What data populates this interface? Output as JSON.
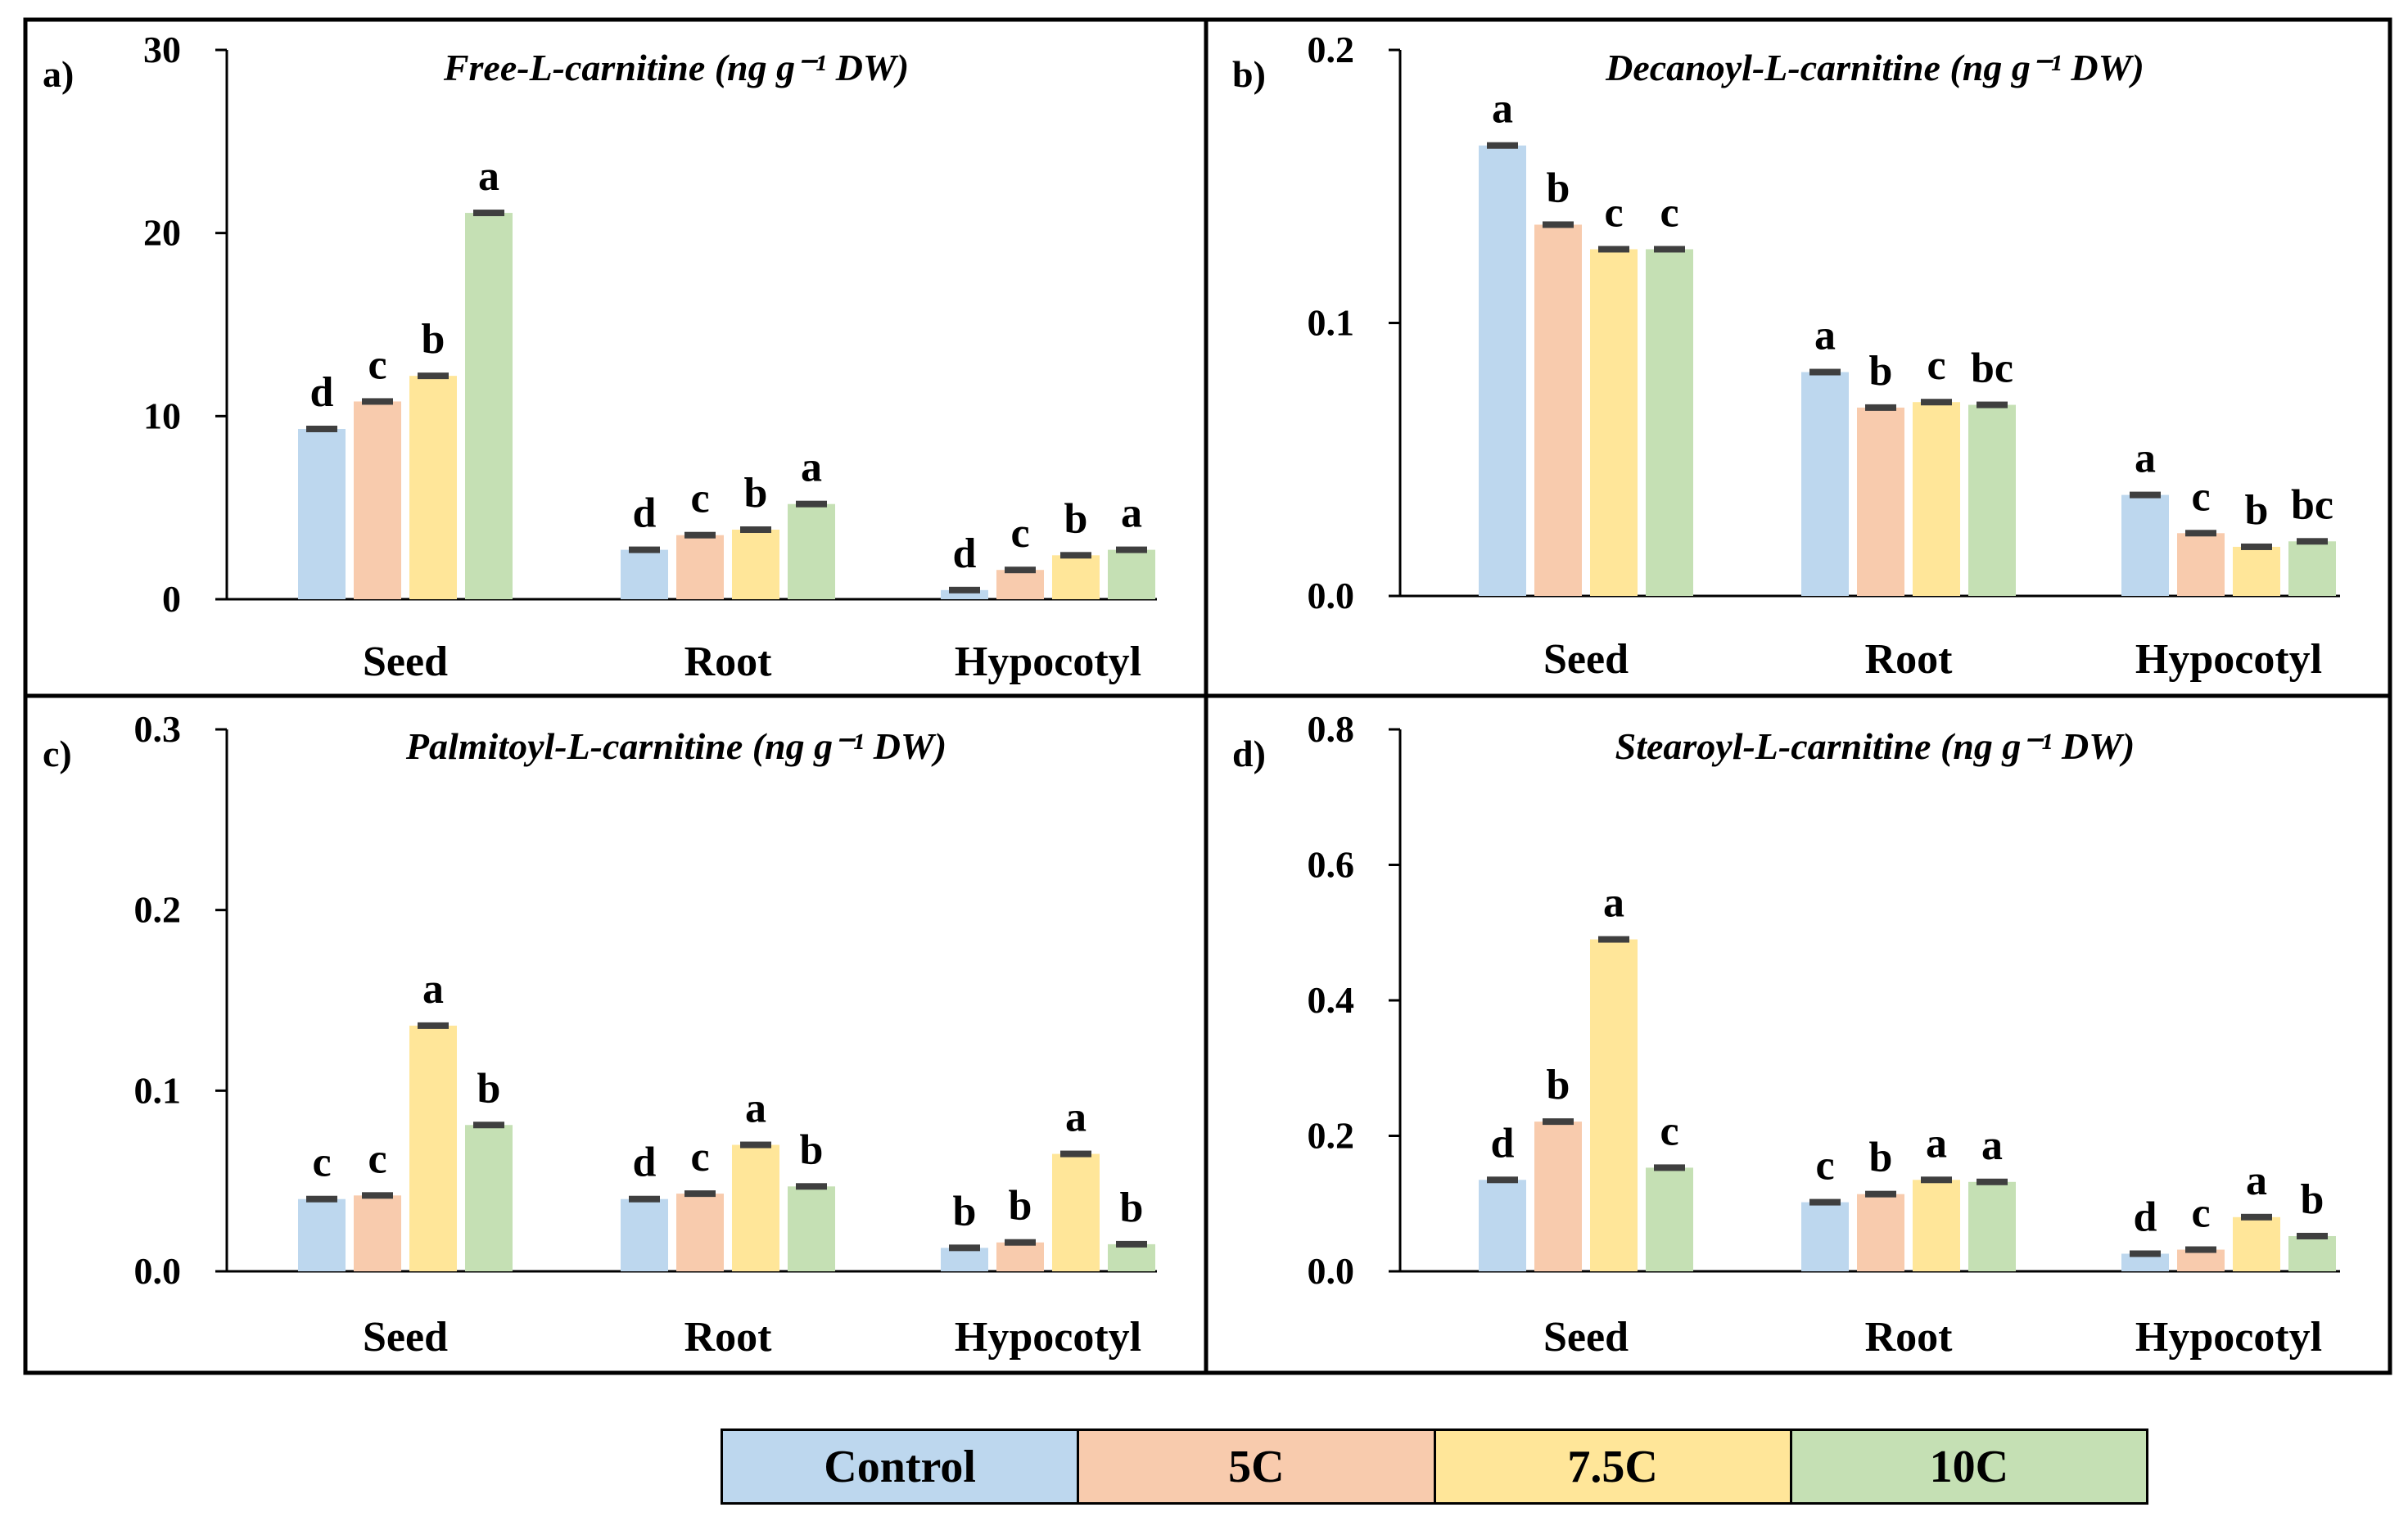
{
  "colors": {
    "Control": "#bdd7ee",
    "5C": "#f8cbad",
    "7.5C": "#ffe699",
    "10C": "#c5e0b4",
    "errorbar": "#3f3f3f"
  },
  "legend": [
    "Control",
    "5C",
    "7.5C",
    "10C"
  ],
  "chart_data": [
    {
      "panel_label": "a)",
      "type": "bar",
      "title": "Free-L-carnitine (ng g⁻¹ DW)",
      "categories": [
        "Seed",
        "Root",
        "Hypocotyl"
      ],
      "ylim": [
        0,
        30
      ],
      "yticks": [
        "0",
        "10",
        "20",
        "30"
      ],
      "ytick_values": [
        0,
        10,
        20,
        30
      ],
      "series": [
        {
          "name": "Control",
          "values": [
            9.3,
            2.7,
            0.5
          ],
          "letters": [
            "d",
            "d",
            "d"
          ]
        },
        {
          "name": "5C",
          "values": [
            10.8,
            3.5,
            1.6
          ],
          "letters": [
            "c",
            "c",
            "c"
          ]
        },
        {
          "name": "7.5C",
          "values": [
            12.2,
            3.8,
            2.4
          ],
          "letters": [
            "b",
            "b",
            "b"
          ]
        },
        {
          "name": "10C",
          "values": [
            21.1,
            5.2,
            2.7
          ],
          "letters": [
            "a",
            "a",
            "a"
          ]
        }
      ]
    },
    {
      "panel_label": "b)",
      "type": "bar",
      "title": "Decanoyl-L-carnitine (ng g⁻¹ DW)",
      "categories": [
        "Seed",
        "Root",
        "Hypocotyl"
      ],
      "ylim": [
        0,
        0.2
      ],
      "yticks": [
        "0.0",
        "0.1",
        "0.2"
      ],
      "ytick_values": [
        0,
        0.1,
        0.2
      ],
      "series": [
        {
          "name": "Control",
          "values": [
            0.165,
            0.082,
            0.037
          ],
          "letters": [
            "a",
            "a",
            "a"
          ]
        },
        {
          "name": "5C",
          "values": [
            0.136,
            0.069,
            0.023
          ],
          "letters": [
            "b",
            "b",
            "c"
          ]
        },
        {
          "name": "7.5C",
          "values": [
            0.127,
            0.071,
            0.018
          ],
          "letters": [
            "c",
            "c",
            "b"
          ]
        },
        {
          "name": "10C",
          "values": [
            0.127,
            0.07,
            0.02
          ],
          "letters": [
            "c",
            "bc",
            "bc"
          ]
        }
      ]
    },
    {
      "panel_label": "c)",
      "type": "bar",
      "title": "Palmitoyl-L-carnitine (ng g⁻¹ DW)",
      "categories": [
        "Seed",
        "Root",
        "Hypocotyl"
      ],
      "ylim": [
        0,
        0.3
      ],
      "yticks": [
        "0.0",
        "0.1",
        "0.2",
        "0.3"
      ],
      "ytick_values": [
        0,
        0.1,
        0.2,
        0.3
      ],
      "series": [
        {
          "name": "Control",
          "values": [
            0.04,
            0.04,
            0.013
          ],
          "letters": [
            "c",
            "d",
            "b"
          ]
        },
        {
          "name": "5C",
          "values": [
            0.042,
            0.043,
            0.016
          ],
          "letters": [
            "c",
            "c",
            "b"
          ]
        },
        {
          "name": "7.5C",
          "values": [
            0.136,
            0.07,
            0.065
          ],
          "letters": [
            "a",
            "a",
            "a"
          ]
        },
        {
          "name": "10C",
          "values": [
            0.081,
            0.047,
            0.015
          ],
          "letters": [
            "b",
            "b",
            "b"
          ]
        }
      ]
    },
    {
      "panel_label": "d)",
      "type": "bar",
      "title": "Stearoyl-L-carnitine (ng g⁻¹ DW)",
      "categories": [
        "Seed",
        "Root",
        "Hypocotyl"
      ],
      "ylim": [
        0,
        0.8
      ],
      "yticks": [
        "0.0",
        "0.2",
        "0.4",
        "0.6",
        "0.8"
      ],
      "ytick_values": [
        0,
        0.2,
        0.4,
        0.6,
        0.8
      ],
      "series": [
        {
          "name": "Control",
          "values": [
            0.135,
            0.102,
            0.026
          ],
          "letters": [
            "d",
            "c",
            "d"
          ]
        },
        {
          "name": "5C",
          "values": [
            0.221,
            0.114,
            0.032
          ],
          "letters": [
            "b",
            "b",
            "c"
          ]
        },
        {
          "name": "7.5C",
          "values": [
            0.49,
            0.135,
            0.08
          ],
          "letters": [
            "a",
            "a",
            "a"
          ]
        },
        {
          "name": "10C",
          "values": [
            0.153,
            0.132,
            0.052
          ],
          "letters": [
            "c",
            "a",
            "b"
          ]
        }
      ]
    }
  ]
}
